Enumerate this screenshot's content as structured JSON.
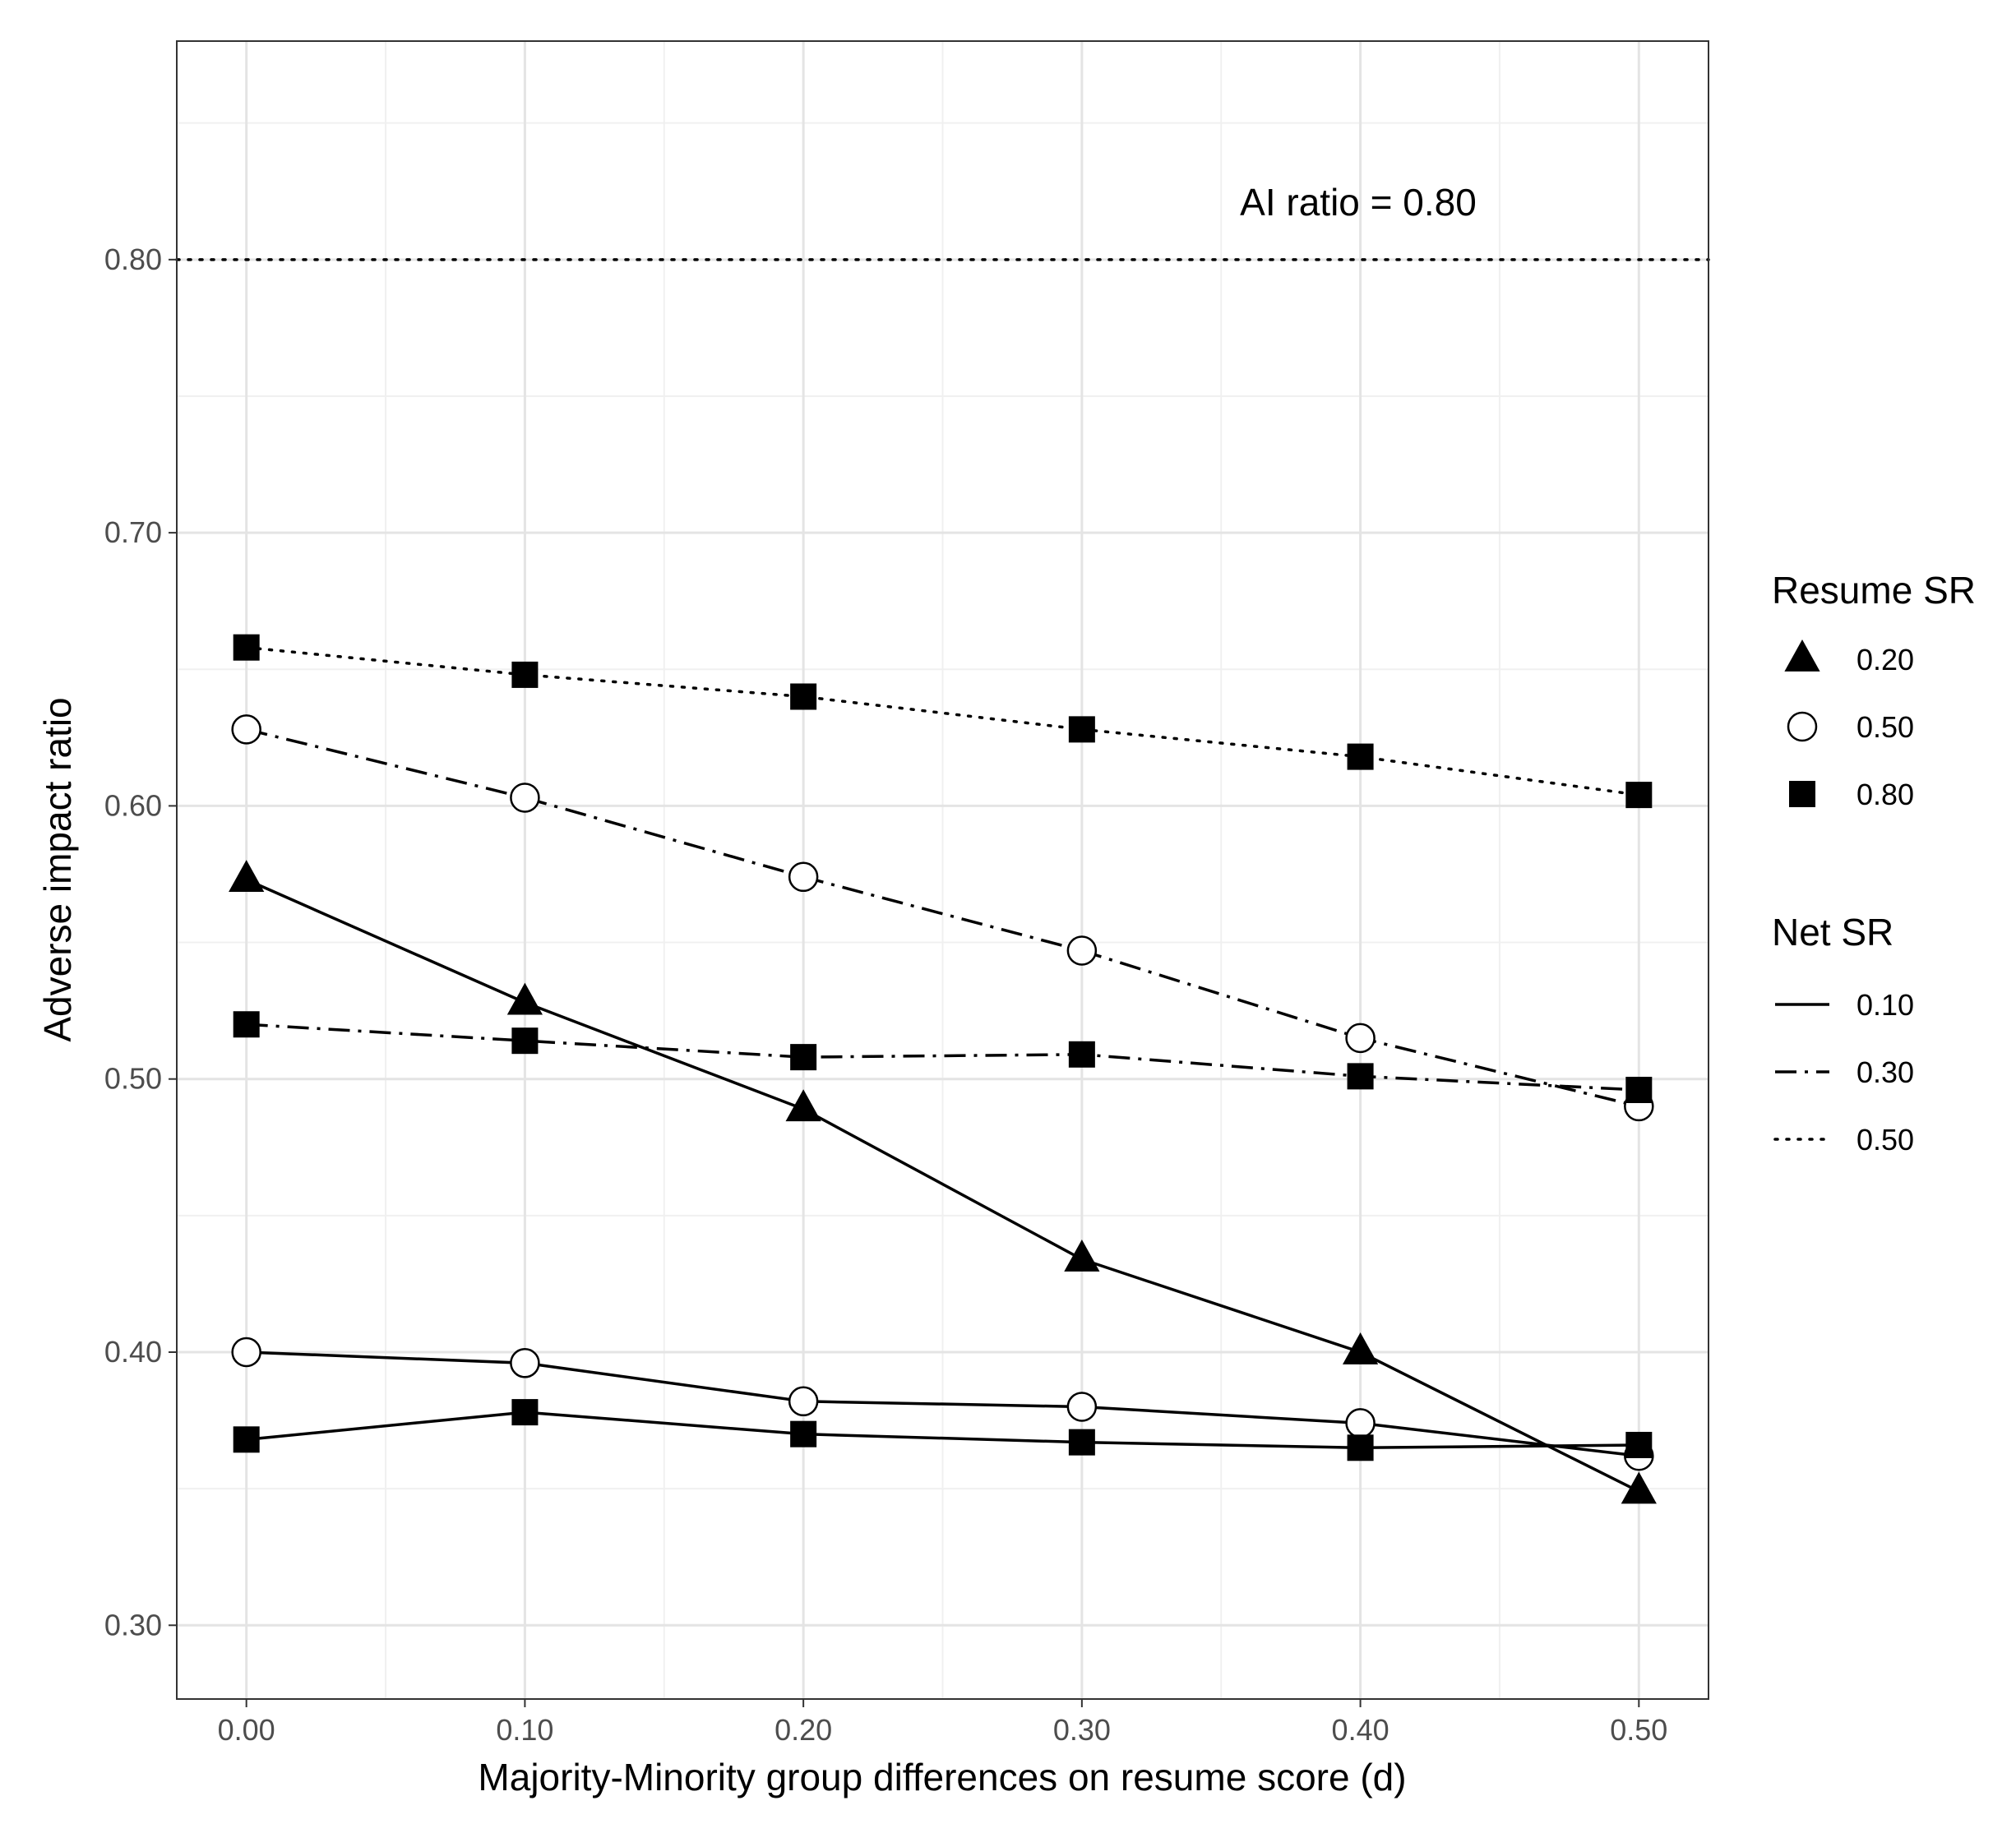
{
  "chart_data": {
    "type": "line",
    "title": "",
    "xlabel": "Majority-Minority group differences on resume score (d)",
    "ylabel": "Adverse impact ratio",
    "x": [
      0.0,
      0.1,
      0.2,
      0.3,
      0.4,
      0.5
    ],
    "x_tick_labels": [
      "0.00",
      "0.10",
      "0.20",
      "0.30",
      "0.40",
      "0.50"
    ],
    "y_ticks": [
      0.3,
      0.4,
      0.5,
      0.6,
      0.7,
      0.8
    ],
    "y_tick_labels": [
      "0.30",
      "0.40",
      "0.50",
      "0.60",
      "0.70",
      "0.80"
    ],
    "xlim": [
      -0.025,
      0.525
    ],
    "ylim": [
      0.273,
      0.88
    ],
    "grid": true,
    "reference_line": {
      "y": 0.8,
      "style": "dotted",
      "label": "AI ratio = 0.80"
    },
    "series": [
      {
        "name": "Resume SR 0.20, Net SR 0.10",
        "resume_sr": "0.20",
        "net_sr": "0.10",
        "marker": "triangle",
        "line": "solid",
        "values": [
          0.573,
          0.528,
          0.489,
          0.434,
          0.4,
          0.349
        ]
      },
      {
        "name": "Resume SR 0.50, Net SR 0.10",
        "resume_sr": "0.50",
        "net_sr": "0.10",
        "marker": "circle",
        "line": "solid",
        "values": [
          0.4,
          0.396,
          0.382,
          0.38,
          0.374,
          0.362
        ]
      },
      {
        "name": "Resume SR 0.80, Net SR 0.10",
        "resume_sr": "0.80",
        "net_sr": "0.10",
        "marker": "square",
        "line": "solid",
        "values": [
          0.368,
          0.378,
          0.37,
          0.367,
          0.365,
          0.366
        ]
      },
      {
        "name": "Resume SR 0.50, Net SR 0.30",
        "resume_sr": "0.50",
        "net_sr": "0.30",
        "marker": "circle",
        "line": "dashdot",
        "values": [
          0.628,
          0.603,
          0.574,
          0.547,
          0.515,
          0.49
        ]
      },
      {
        "name": "Resume SR 0.80, Net SR 0.30",
        "resume_sr": "0.80",
        "net_sr": "0.30",
        "marker": "square",
        "line": "dashdot",
        "values": [
          0.52,
          0.514,
          0.508,
          0.509,
          0.501,
          0.496
        ]
      },
      {
        "name": "Resume SR 0.80, Net SR 0.50",
        "resume_sr": "0.80",
        "net_sr": "0.50",
        "marker": "square",
        "line": "dotted",
        "values": [
          0.658,
          0.648,
          0.64,
          0.628,
          0.618,
          0.604
        ]
      }
    ],
    "legend": {
      "position": "right",
      "resume_title": "Resume SR",
      "resume_items": [
        {
          "label": "0.20",
          "marker": "triangle"
        },
        {
          "label": "0.50",
          "marker": "circle"
        },
        {
          "label": "0.80",
          "marker": "square"
        }
      ],
      "net_title": "Net SR",
      "net_items": [
        {
          "label": "0.10",
          "line": "solid"
        },
        {
          "label": "0.30",
          "line": "dashdot"
        },
        {
          "label": "0.50",
          "line": "dotted"
        }
      ]
    }
  }
}
